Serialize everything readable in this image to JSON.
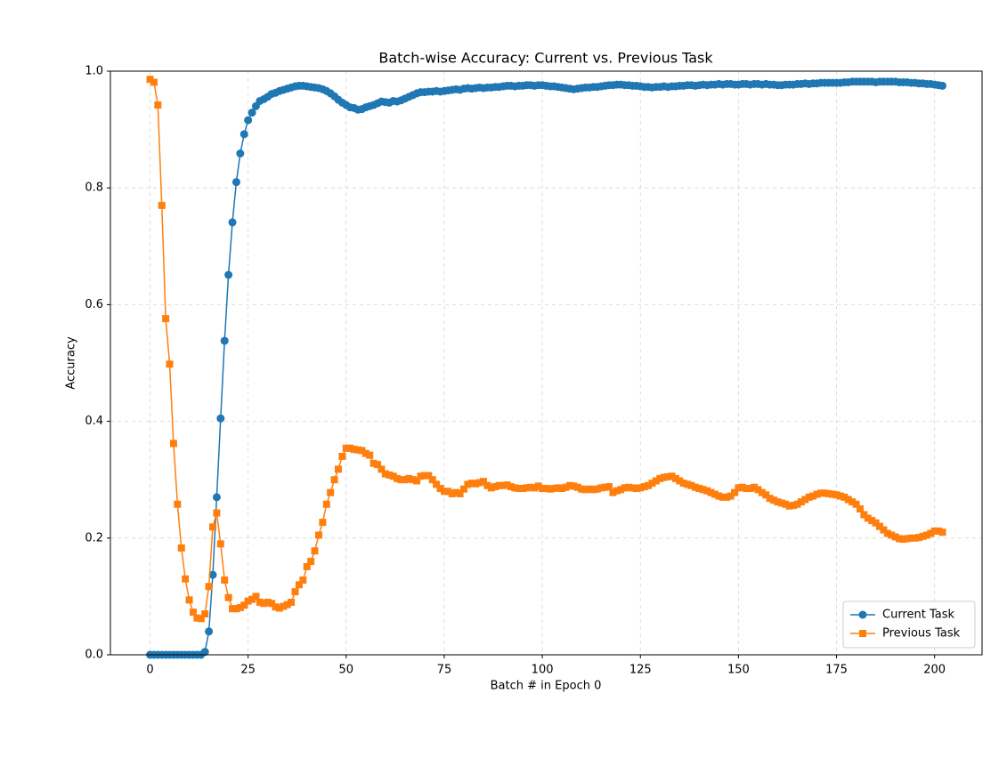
{
  "chart_data": {
    "type": "line",
    "title": "Batch-wise Accuracy: Current vs. Previous Task",
    "x_label": "Batch # in Epoch 0",
    "y_label": "Accuracy",
    "x": [
      0,
      1,
      2,
      3,
      4,
      5,
      6,
      7,
      8,
      9,
      10,
      11,
      12,
      13,
      14,
      15,
      16,
      17,
      18,
      19,
      20,
      21,
      22,
      23,
      24,
      25,
      26,
      27,
      28,
      29,
      30,
      31,
      32,
      33,
      34,
      35,
      36,
      37,
      38,
      39,
      40,
      41,
      42,
      43,
      44,
      45,
      46,
      47,
      48,
      49,
      50,
      51,
      52,
      53,
      54,
      55,
      56,
      57,
      58,
      59,
      60,
      61,
      62,
      63,
      64,
      65,
      66,
      67,
      68,
      69,
      70,
      71,
      72,
      73,
      74,
      75,
      76,
      77,
      78,
      79,
      80,
      81,
      82,
      83,
      84,
      85,
      86,
      87,
      88,
      89,
      90,
      91,
      92,
      93,
      94,
      95,
      96,
      97,
      98,
      99,
      100,
      101,
      102,
      103,
      104,
      105,
      106,
      107,
      108,
      109,
      110,
      111,
      112,
      113,
      114,
      115,
      116,
      117,
      118,
      119,
      120,
      121,
      122,
      123,
      124,
      125,
      126,
      127,
      128,
      129,
      130,
      131,
      132,
      133,
      134,
      135,
      136,
      137,
      138,
      139,
      140,
      141,
      142,
      143,
      144,
      145,
      146,
      147,
      148,
      149,
      150,
      151,
      152,
      153,
      154,
      155,
      156,
      157,
      158,
      159,
      160,
      161,
      162,
      163,
      164,
      165,
      166,
      167,
      168,
      169,
      170,
      171,
      172,
      173,
      174,
      175,
      176,
      177,
      178,
      179,
      180,
      181,
      182,
      183,
      184,
      185,
      186,
      187,
      188,
      189,
      190,
      191,
      192,
      193,
      194,
      195,
      196,
      197,
      198,
      199,
      200,
      201,
      202
    ],
    "series": [
      {
        "name": "Current Task",
        "color": "#1f77b4",
        "marker": "circle",
        "values": [
          0,
          0,
          0,
          0,
          0,
          0,
          0,
          0,
          0,
          0,
          0,
          0,
          0,
          0,
          0.005,
          0.04,
          0.137,
          0.27,
          0.405,
          0.538,
          0.651,
          0.741,
          0.81,
          0.859,
          0.892,
          0.916,
          0.929,
          0.94,
          0.949,
          0.952,
          0.956,
          0.961,
          0.963,
          0.966,
          0.968,
          0.97,
          0.972,
          0.974,
          0.975,
          0.975,
          0.974,
          0.973,
          0.972,
          0.971,
          0.969,
          0.966,
          0.962,
          0.957,
          0.951,
          0.946,
          0.942,
          0.938,
          0.937,
          0.934,
          0.935,
          0.938,
          0.94,
          0.942,
          0.945,
          0.948,
          0.947,
          0.946,
          0.949,
          0.948,
          0.95,
          0.953,
          0.956,
          0.959,
          0.962,
          0.964,
          0.964,
          0.965,
          0.965,
          0.966,
          0.965,
          0.966,
          0.967,
          0.968,
          0.969,
          0.968,
          0.97,
          0.971,
          0.97,
          0.971,
          0.972,
          0.971,
          0.972,
          0.972,
          0.973,
          0.973,
          0.974,
          0.975,
          0.975,
          0.974,
          0.975,
          0.975,
          0.976,
          0.976,
          0.975,
          0.976,
          0.976,
          0.975,
          0.974,
          0.974,
          0.973,
          0.972,
          0.971,
          0.97,
          0.969,
          0.97,
          0.971,
          0.972,
          0.972,
          0.973,
          0.973,
          0.974,
          0.975,
          0.976,
          0.976,
          0.977,
          0.977,
          0.976,
          0.976,
          0.975,
          0.975,
          0.974,
          0.973,
          0.973,
          0.972,
          0.973,
          0.973,
          0.974,
          0.973,
          0.974,
          0.974,
          0.975,
          0.975,
          0.976,
          0.976,
          0.975,
          0.976,
          0.977,
          0.976,
          0.977,
          0.977,
          0.978,
          0.977,
          0.978,
          0.978,
          0.977,
          0.977,
          0.978,
          0.978,
          0.977,
          0.978,
          0.978,
          0.977,
          0.978,
          0.977,
          0.977,
          0.976,
          0.976,
          0.977,
          0.977,
          0.977,
          0.978,
          0.978,
          0.979,
          0.978,
          0.979,
          0.979,
          0.98,
          0.98,
          0.98,
          0.98,
          0.98,
          0.98,
          0.981,
          0.981,
          0.982,
          0.982,
          0.982,
          0.982,
          0.982,
          0.982,
          0.981,
          0.982,
          0.982,
          0.982,
          0.982,
          0.982,
          0.981,
          0.981,
          0.981,
          0.98,
          0.98,
          0.979,
          0.979,
          0.978,
          0.978,
          0.977,
          0.976,
          0.975
        ]
      },
      {
        "name": "Previous Task",
        "color": "#ff7f0e",
        "marker": "square",
        "values": [
          0.986,
          0.981,
          0.942,
          0.77,
          0.576,
          0.498,
          0.362,
          0.258,
          0.183,
          0.13,
          0.094,
          0.073,
          0.063,
          0.062,
          0.07,
          0.117,
          0.219,
          0.243,
          0.19,
          0.128,
          0.098,
          0.079,
          0.079,
          0.081,
          0.085,
          0.092,
          0.095,
          0.1,
          0.09,
          0.088,
          0.09,
          0.088,
          0.082,
          0.08,
          0.083,
          0.086,
          0.09,
          0.108,
          0.12,
          0.128,
          0.151,
          0.16,
          0.178,
          0.205,
          0.227,
          0.258,
          0.278,
          0.3,
          0.318,
          0.34,
          0.354,
          0.354,
          0.352,
          0.351,
          0.35,
          0.345,
          0.342,
          0.328,
          0.326,
          0.318,
          0.31,
          0.308,
          0.306,
          0.302,
          0.3,
          0.3,
          0.302,
          0.3,
          0.298,
          0.306,
          0.307,
          0.307,
          0.3,
          0.292,
          0.285,
          0.28,
          0.28,
          0.276,
          0.278,
          0.276,
          0.284,
          0.292,
          0.294,
          0.293,
          0.295,
          0.297,
          0.29,
          0.286,
          0.288,
          0.29,
          0.29,
          0.291,
          0.288,
          0.286,
          0.285,
          0.285,
          0.286,
          0.287,
          0.286,
          0.289,
          0.285,
          0.285,
          0.284,
          0.285,
          0.286,
          0.285,
          0.287,
          0.29,
          0.289,
          0.287,
          0.284,
          0.283,
          0.284,
          0.283,
          0.284,
          0.286,
          0.287,
          0.288,
          0.278,
          0.281,
          0.283,
          0.286,
          0.287,
          0.286,
          0.285,
          0.286,
          0.288,
          0.29,
          0.294,
          0.298,
          0.302,
          0.304,
          0.305,
          0.306,
          0.302,
          0.298,
          0.294,
          0.292,
          0.29,
          0.287,
          0.285,
          0.283,
          0.281,
          0.278,
          0.275,
          0.272,
          0.27,
          0.27,
          0.272,
          0.278,
          0.286,
          0.287,
          0.285,
          0.285,
          0.287,
          0.283,
          0.278,
          0.274,
          0.268,
          0.265,
          0.262,
          0.26,
          0.258,
          0.255,
          0.256,
          0.258,
          0.262,
          0.266,
          0.27,
          0.272,
          0.275,
          0.277,
          0.277,
          0.276,
          0.275,
          0.274,
          0.272,
          0.27,
          0.266,
          0.262,
          0.258,
          0.25,
          0.24,
          0.234,
          0.23,
          0.226,
          0.22,
          0.214,
          0.208,
          0.205,
          0.202,
          0.199,
          0.198,
          0.199,
          0.2,
          0.2,
          0.201,
          0.203,
          0.205,
          0.208,
          0.212,
          0.212,
          0.21
        ]
      }
    ],
    "xlim": [
      -10.1,
      212.1
    ],
    "ylim": [
      0,
      1
    ],
    "xticks": [
      0,
      25,
      50,
      75,
      100,
      125,
      150,
      175,
      200
    ],
    "yticks": [
      {
        "value": 0,
        "label": "0.0"
      },
      0.2,
      0.4,
      0.6,
      0.8,
      {
        "value": 1,
        "label": "1.0"
      }
    ],
    "grid": true,
    "legend": "lower right"
  }
}
